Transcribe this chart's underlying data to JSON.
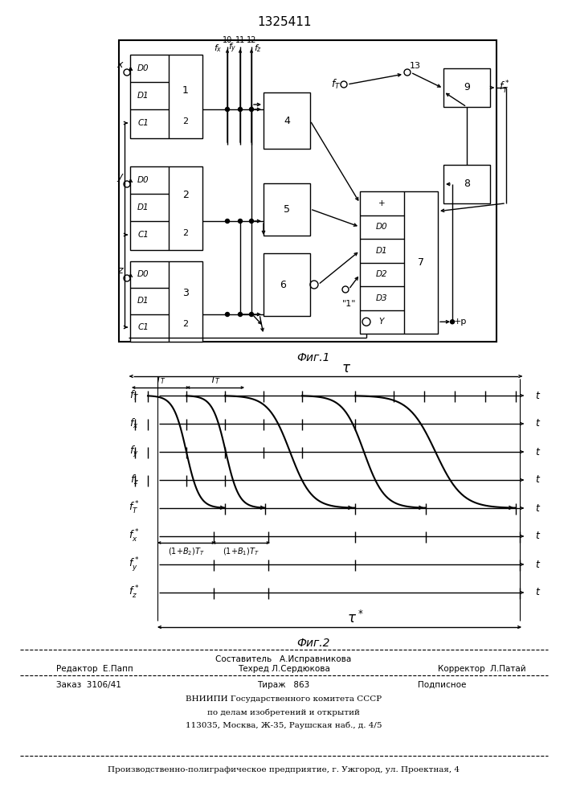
{
  "title": "1325411",
  "fig1_caption": "Фиг.1",
  "fig2_caption": "Фиг.2",
  "bg_color": "#ffffff",
  "line_color": "#000000"
}
